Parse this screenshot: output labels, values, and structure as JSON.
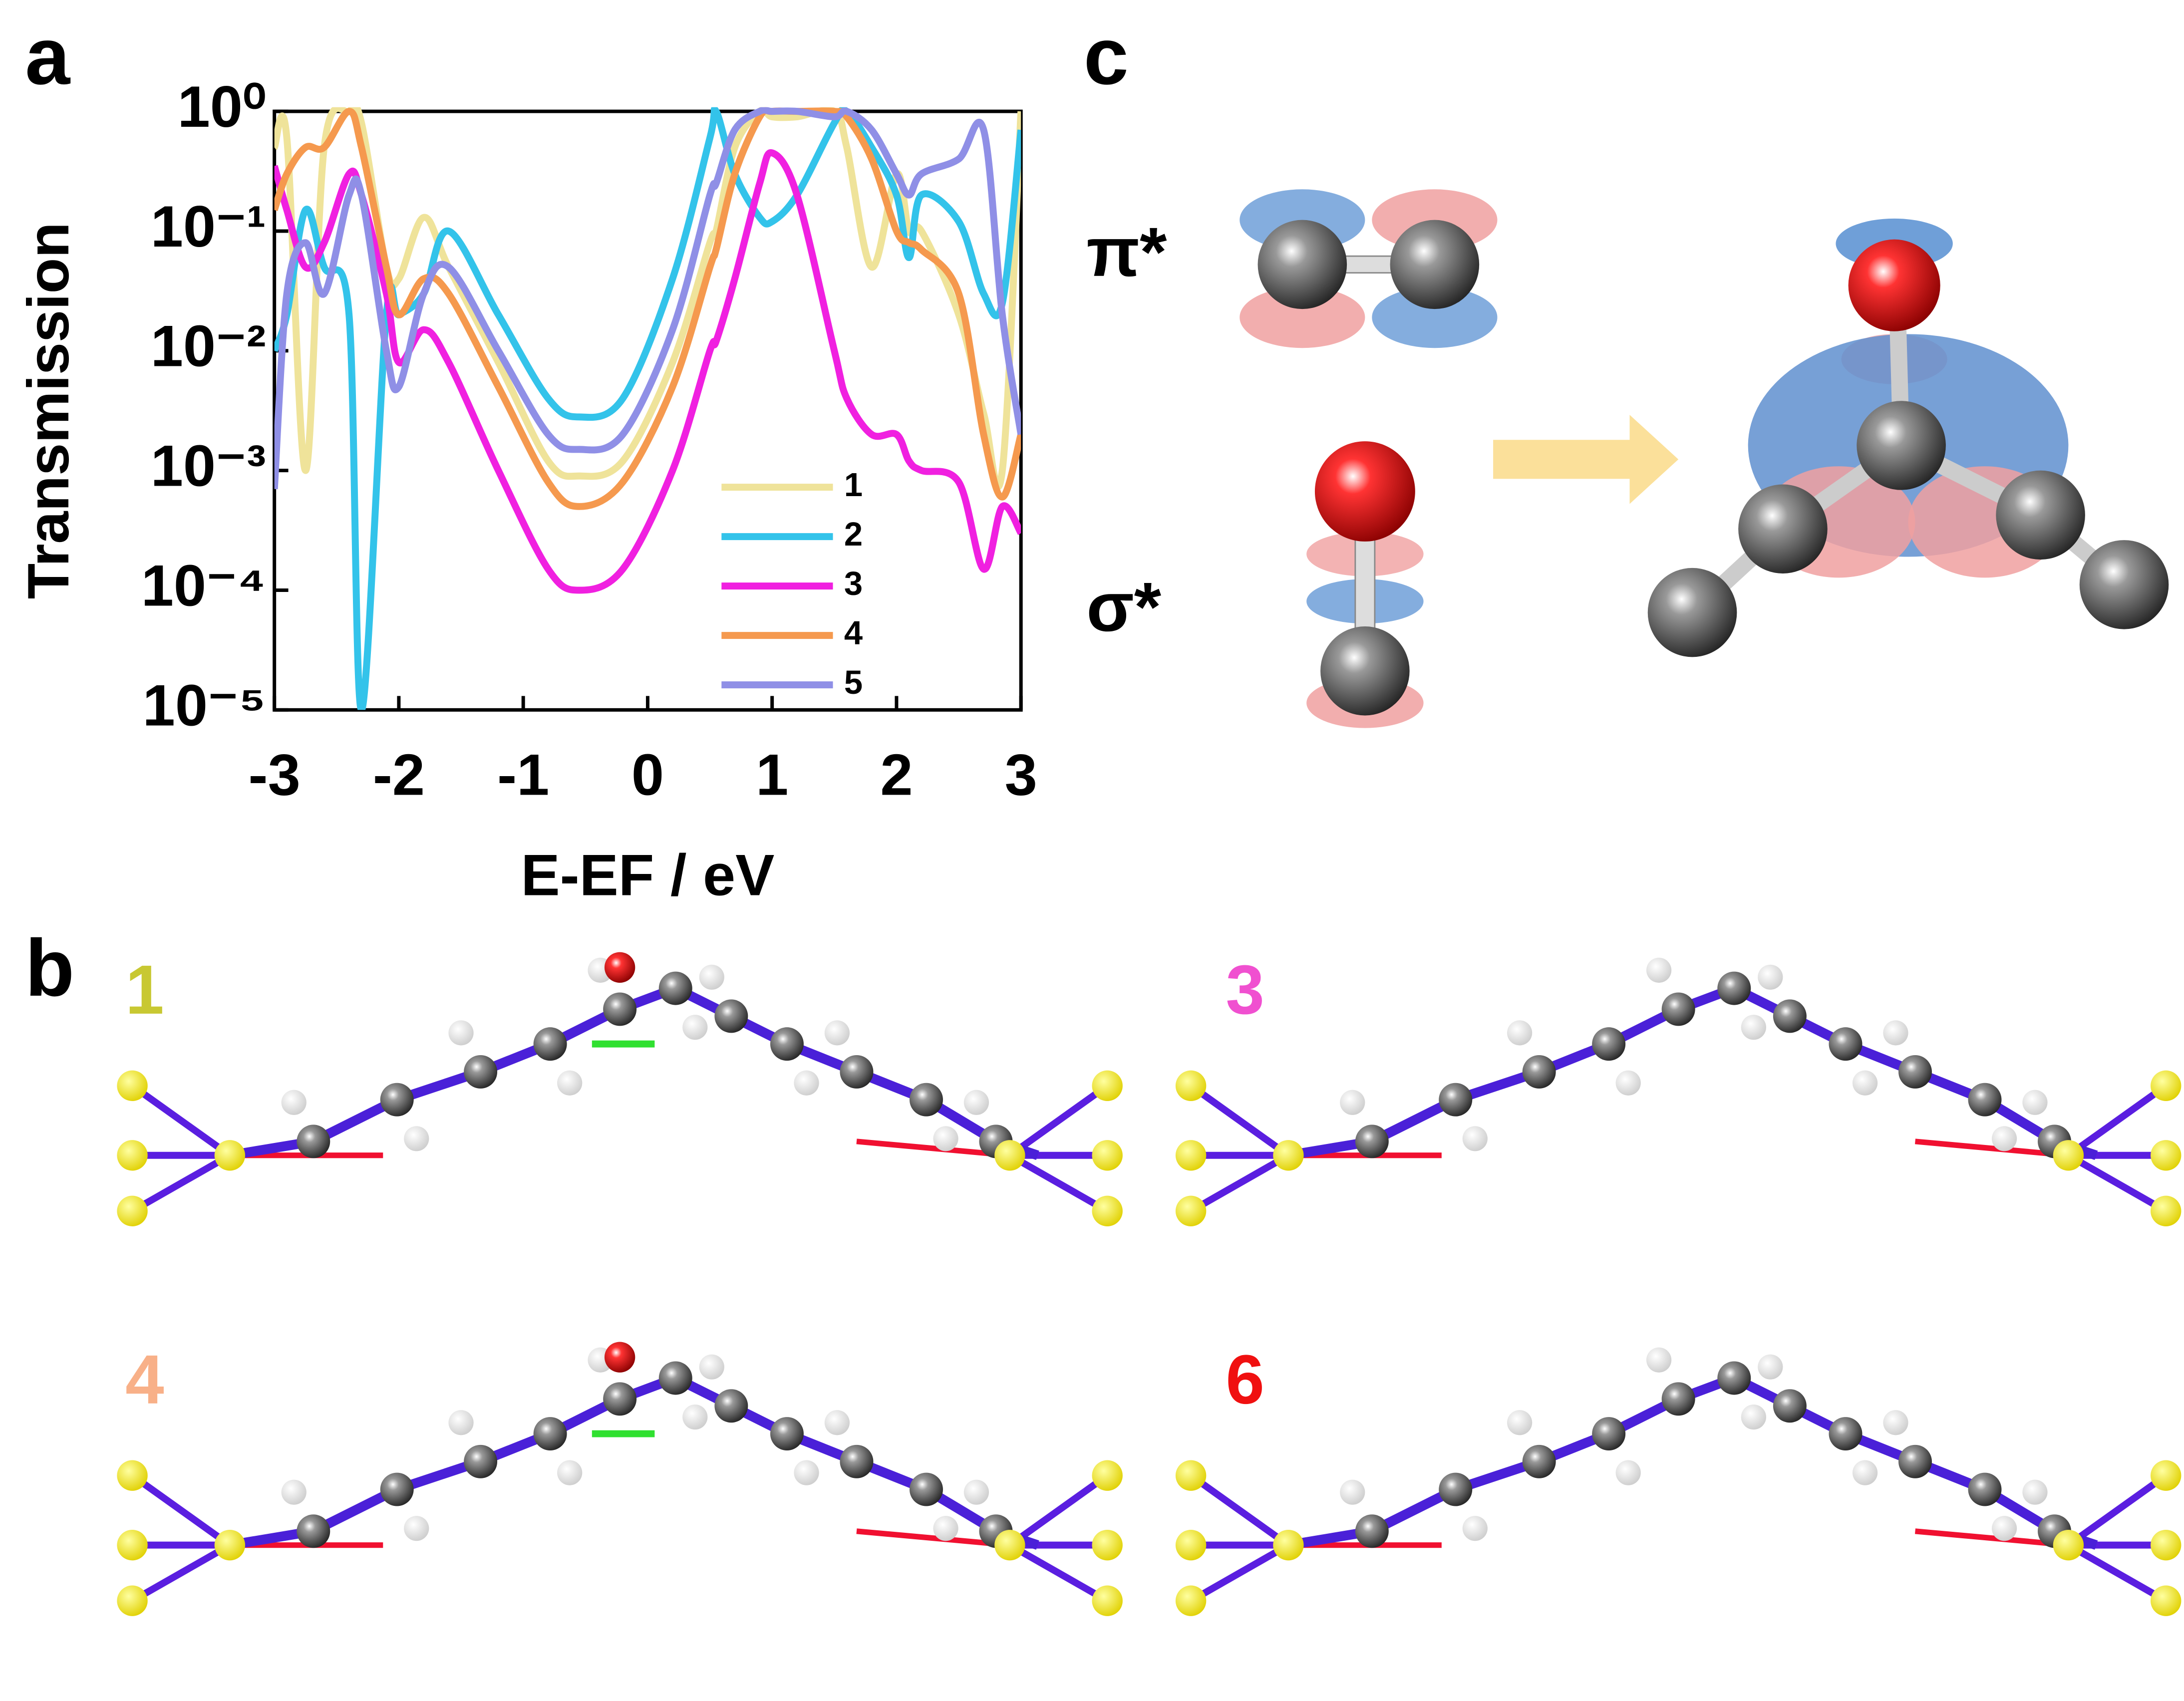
{
  "chart_data": {
    "type": "line",
    "y_label": "Transmission",
    "x_label": "E-EF / eV",
    "log_y": true,
    "legend": "lower right",
    "x": [
      -3,
      -2.9,
      -2.75,
      -2.6,
      -2.4,
      -2.3,
      -2.1,
      -2,
      -1.8,
      -1.6,
      -1.2,
      -0.8,
      -0.55,
      -0.2,
      0.2,
      0.5,
      0.55,
      0.7,
      0.9,
      1,
      1.2,
      1.5,
      1.6,
      1.8,
      2,
      2.1,
      2.2,
      2.5,
      2.7,
      2.85,
      3
    ],
    "series": [
      {
        "name": "1",
        "color": "#efe39a",
        "values": [
          0.5,
          0.6,
          0.001,
          0.5,
          1,
          0.8,
          0.05,
          0.04,
          0.13,
          0.05,
          0.008,
          0.0012,
          0.0009,
          0.0012,
          0.008,
          0.08,
          0.1,
          0.5,
          1,
          0.9,
          0.9,
          1,
          0.5,
          0.05,
          0.3,
          0.1,
          0.1,
          0.02,
          0.003,
          0.001,
          1
        ]
      },
      {
        "name": "2",
        "color": "#33c3ea",
        "values": [
          0.01,
          0.02,
          0.15,
          0.05,
          0.02,
          1e-05,
          0.02,
          0.02,
          0.03,
          0.1,
          0.02,
          0.004,
          0.0028,
          0.004,
          0.04,
          0.6,
          1,
          0.3,
          0.13,
          0.12,
          0.2,
          0.8,
          1,
          0.5,
          0.2,
          0.06,
          0.2,
          0.12,
          0.03,
          0.025,
          0.7
        ]
      },
      {
        "name": "3",
        "color": "#f020e0",
        "values": [
          0.35,
          0.15,
          0.05,
          0.08,
          0.3,
          0.2,
          0.03,
          0.008,
          0.015,
          0.008,
          0.001,
          0.00015,
          0.0001,
          0.00015,
          0.001,
          0.01,
          0.012,
          0.04,
          0.25,
          0.45,
          0.2,
          0.01,
          0.004,
          0.002,
          0.002,
          0.0012,
          0.001,
          0.0008,
          0.00015,
          0.0005,
          0.0003
        ]
      },
      {
        "name": "4",
        "color": "#f5994e",
        "values": [
          0.15,
          0.3,
          0.5,
          0.5,
          1,
          0.5,
          0.05,
          0.02,
          0.04,
          0.03,
          0.005,
          0.0008,
          0.0005,
          0.0008,
          0.005,
          0.05,
          0.07,
          0.3,
          0.9,
          1,
          1,
          1,
          0.9,
          0.4,
          0.1,
          0.08,
          0.07,
          0.03,
          0.002,
          0.0006,
          0.002
        ]
      },
      {
        "name": "5",
        "color": "#8f8fe6",
        "values": [
          0.0007,
          0.03,
          0.08,
          0.03,
          0.2,
          0.2,
          0.01,
          0.005,
          0.03,
          0.05,
          0.01,
          0.002,
          0.0015,
          0.002,
          0.015,
          0.2,
          0.25,
          0.7,
          1,
          1,
          1,
          0.9,
          1,
          0.7,
          0.3,
          0.2,
          0.3,
          0.4,
          0.7,
          0.02,
          0.002
        ]
      }
    ],
    "xlim": [
      -3,
      3
    ],
    "xticks": [
      -3,
      -2,
      -1,
      0,
      1,
      2,
      3
    ],
    "ylim": [
      1e-05,
      1
    ],
    "yticks": [
      {
        "value": 1e-05,
        "label": "10⁻⁵"
      },
      {
        "value": 0.0001,
        "label": "10⁻⁴"
      },
      {
        "value": 0.001,
        "label": "10⁻³"
      },
      {
        "value": 0.01,
        "label": "10⁻²"
      },
      {
        "value": 0.1,
        "label": "10⁻¹"
      },
      {
        "value": 1,
        "label": "10⁰"
      }
    ]
  },
  "panels": {
    "a": "a",
    "b": "b",
    "c": "c"
  },
  "orbitals": {
    "pi": "π*",
    "sigma": "σ*"
  },
  "structures": [
    {
      "label": "1",
      "color": "#c8c832"
    },
    {
      "label": "3",
      "color": "#f050d0"
    },
    {
      "label": "4",
      "color": "#f8b088"
    },
    {
      "label": "6",
      "color": "#f01010"
    }
  ]
}
